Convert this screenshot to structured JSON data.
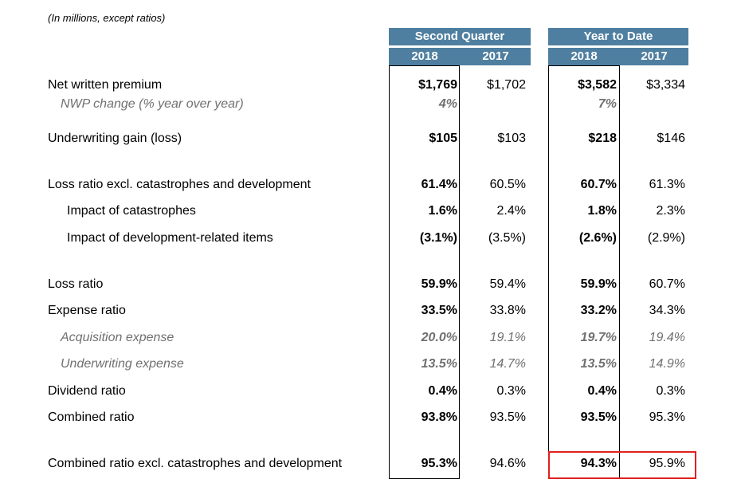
{
  "note": "(In millions, except ratios)",
  "headers": {
    "second_quarter": "Second Quarter",
    "year_to_date": "Year to Date",
    "years": [
      "2018",
      "2017",
      "2018",
      "2017"
    ]
  },
  "rows": [
    {
      "label": "Net written premium",
      "values": [
        "$1,769",
        "$1,702",
        "$3,582",
        "$3,334"
      ]
    },
    {
      "label": "NWP change (% year over year)",
      "values": [
        "4%",
        "",
        "7%",
        ""
      ]
    },
    {
      "label": "Underwriting gain (loss)",
      "values": [
        "$105",
        "$103",
        "$218",
        "$146"
      ]
    },
    {
      "label": "Loss ratio excl. catastrophes and development",
      "values": [
        "61.4%",
        "60.5%",
        "60.7%",
        "61.3%"
      ]
    },
    {
      "label": "Impact of catastrophes",
      "values": [
        "1.6%",
        "2.4%",
        "1.8%",
        "2.3%"
      ]
    },
    {
      "label": "Impact of development-related items",
      "values": [
        "(3.1%)",
        "(3.5%)",
        "(2.6%)",
        "(2.9%)"
      ]
    },
    {
      "label": "Loss ratio",
      "values": [
        "59.9%",
        "59.4%",
        "59.9%",
        "60.7%"
      ]
    },
    {
      "label": "Expense ratio",
      "values": [
        "33.5%",
        "33.8%",
        "33.2%",
        "34.3%"
      ]
    },
    {
      "label": "Acquisition expense",
      "values": [
        "20.0%",
        "19.1%",
        "19.7%",
        "19.4%"
      ]
    },
    {
      "label": "Underwriting expense",
      "values": [
        "13.5%",
        "14.7%",
        "13.5%",
        "14.9%"
      ]
    },
    {
      "label": "Dividend ratio",
      "values": [
        "0.4%",
        "0.3%",
        "0.4%",
        "0.3%"
      ]
    },
    {
      "label": "Combined ratio",
      "values": [
        "93.8%",
        "93.5%",
        "93.5%",
        "95.3%"
      ]
    },
    {
      "label": "Combined ratio excl. catastrophes and development",
      "values": [
        "95.3%",
        "94.6%",
        "94.3%",
        "95.9%"
      ]
    }
  ],
  "colors": {
    "header_bg": "#4f7fa0",
    "header_text": "#ffffff",
    "highlight": "#e02020",
    "subtext": "#707070"
  }
}
